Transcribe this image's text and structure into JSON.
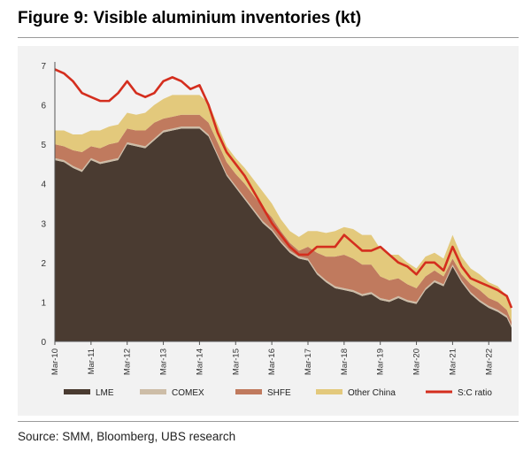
{
  "figure": {
    "title": "Figure 9: Visible aluminium inventories (kt)",
    "source": "Source: SMM, Bloomberg, UBS research"
  },
  "chart_data": {
    "type": "area",
    "y_ticks": [
      "0",
      "1",
      "2",
      "3",
      "4",
      "5",
      "6",
      "7"
    ],
    "ylim": [
      0,
      7
    ],
    "x_ticks": [
      "Mar-10",
      "Mar-11",
      "Mar-12",
      "Mar-13",
      "Mar-14",
      "Mar-15",
      "Mar-16",
      "Mar-17",
      "Mar-18",
      "Mar-19",
      "Mar-20",
      "Mar-21",
      "Mar-22"
    ],
    "x_tick_years": [
      2010.17,
      2011.17,
      2012.17,
      2013.17,
      2014.17,
      2015.17,
      2016.17,
      2017.17,
      2018.17,
      2019.17,
      2020.17,
      2021.17,
      2022.17
    ],
    "xlim": [
      2010.17,
      2022.8
    ],
    "legend_position": "bottom",
    "colors": {
      "LME": "#4a3b31",
      "COMEX": "#cdbda7",
      "SHFE": "#c07a5e",
      "Other China": "#e3c97c",
      "S:C ratio": "#d42e1e"
    },
    "x": [
      2010.17,
      2010.42,
      2010.67,
      2010.92,
      2011.17,
      2011.42,
      2011.67,
      2011.92,
      2012.17,
      2012.42,
      2012.67,
      2012.92,
      2013.17,
      2013.42,
      2013.67,
      2013.92,
      2014.17,
      2014.42,
      2014.67,
      2014.92,
      2015.17,
      2015.42,
      2015.67,
      2015.92,
      2016.17,
      2016.42,
      2016.67,
      2016.92,
      2017.17,
      2017.42,
      2017.67,
      2017.92,
      2018.17,
      2018.42,
      2018.67,
      2018.92,
      2019.17,
      2019.42,
      2019.67,
      2019.92,
      2020.17,
      2020.42,
      2020.67,
      2020.92,
      2021.17,
      2021.42,
      2021.67,
      2021.92,
      2022.17,
      2022.42,
      2022.67,
      2022.8
    ],
    "series": [
      {
        "name": "LME",
        "values": [
          4.6,
          4.55,
          4.4,
          4.3,
          4.6,
          4.5,
          4.55,
          4.6,
          5.0,
          4.95,
          4.9,
          5.1,
          5.3,
          5.35,
          5.4,
          5.4,
          5.4,
          5.2,
          4.7,
          4.2,
          3.9,
          3.6,
          3.3,
          3.0,
          2.8,
          2.5,
          2.25,
          2.1,
          2.05,
          1.7,
          1.5,
          1.35,
          1.3,
          1.25,
          1.15,
          1.2,
          1.05,
          1.0,
          1.1,
          1.0,
          0.95,
          1.3,
          1.5,
          1.4,
          1.9,
          1.5,
          1.2,
          1.0,
          0.85,
          0.75,
          0.6,
          0.35
        ]
      },
      {
        "name": "COMEX",
        "values": [
          0.05,
          0.05,
          0.05,
          0.05,
          0.05,
          0.05,
          0.05,
          0.05,
          0.05,
          0.05,
          0.05,
          0.05,
          0.05,
          0.05,
          0.05,
          0.05,
          0.05,
          0.05,
          0.05,
          0.05,
          0.05,
          0.05,
          0.05,
          0.05,
          0.05,
          0.05,
          0.05,
          0.05,
          0.05,
          0.05,
          0.05,
          0.05,
          0.05,
          0.05,
          0.05,
          0.05,
          0.05,
          0.05,
          0.05,
          0.05,
          0.05,
          0.05,
          0.05,
          0.05,
          0.05,
          0.05,
          0.05,
          0.05,
          0.05,
          0.05,
          0.05,
          0.05
        ]
      },
      {
        "name": "SHFE",
        "values": [
          0.35,
          0.35,
          0.4,
          0.45,
          0.3,
          0.35,
          0.4,
          0.4,
          0.35,
          0.35,
          0.4,
          0.4,
          0.3,
          0.3,
          0.3,
          0.3,
          0.3,
          0.3,
          0.3,
          0.3,
          0.3,
          0.35,
          0.35,
          0.35,
          0.3,
          0.25,
          0.2,
          0.15,
          0.3,
          0.5,
          0.6,
          0.75,
          0.85,
          0.8,
          0.75,
          0.7,
          0.55,
          0.5,
          0.45,
          0.4,
          0.35,
          0.3,
          0.25,
          0.2,
          0.15,
          0.15,
          0.2,
          0.25,
          0.2,
          0.2,
          0.15,
          0.1
        ]
      },
      {
        "name": "Other China",
        "values": [
          0.35,
          0.4,
          0.4,
          0.45,
          0.4,
          0.45,
          0.45,
          0.45,
          0.4,
          0.4,
          0.45,
          0.45,
          0.5,
          0.55,
          0.5,
          0.5,
          0.5,
          0.5,
          0.45,
          0.4,
          0.4,
          0.4,
          0.4,
          0.4,
          0.35,
          0.3,
          0.3,
          0.35,
          0.4,
          0.55,
          0.6,
          0.65,
          0.7,
          0.75,
          0.75,
          0.75,
          0.7,
          0.65,
          0.6,
          0.55,
          0.5,
          0.5,
          0.45,
          0.45,
          0.6,
          0.45,
          0.4,
          0.4,
          0.4,
          0.4,
          0.35,
          0.3
        ]
      },
      {
        "name": "S:C ratio",
        "values": [
          6.9,
          6.8,
          6.6,
          6.3,
          6.2,
          6.1,
          6.1,
          6.3,
          6.6,
          6.3,
          6.2,
          6.3,
          6.6,
          6.7,
          6.6,
          6.4,
          6.5,
          6.0,
          5.3,
          4.8,
          4.5,
          4.2,
          3.8,
          3.4,
          3.0,
          2.7,
          2.4,
          2.2,
          2.2,
          2.4,
          2.4,
          2.4,
          2.7,
          2.5,
          2.3,
          2.3,
          2.4,
          2.2,
          2.0,
          1.9,
          1.7,
          2.0,
          2.0,
          1.8,
          2.4,
          1.9,
          1.6,
          1.5,
          1.4,
          1.3,
          1.15,
          0.85
        ]
      }
    ]
  }
}
